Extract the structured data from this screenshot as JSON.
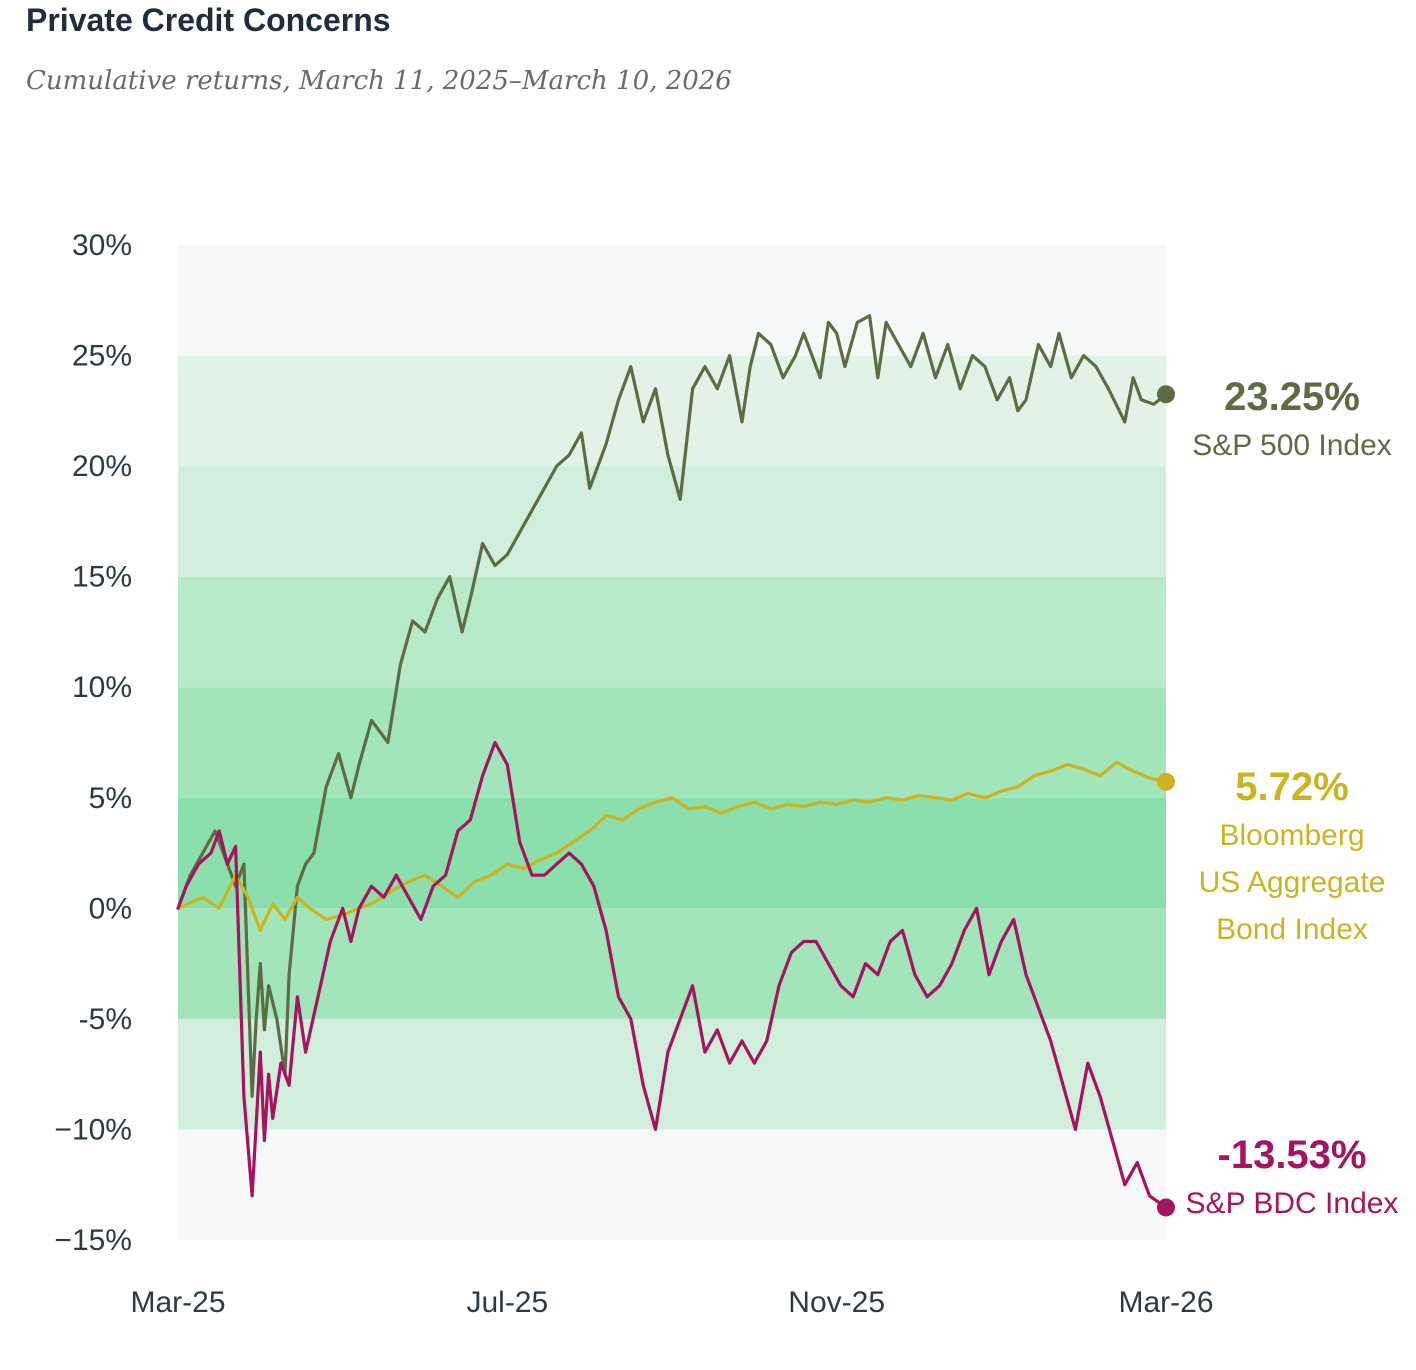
{
  "header": {
    "title": "Private Credit Concerns",
    "subtitle": "Cumulative returns, March 11, 2025–March 10, 2026"
  },
  "chart_data": {
    "type": "line",
    "title": "Private Credit Concerns",
    "subtitle": "Cumulative returns, March 11, 2025–March 10, 2026",
    "xlabel": "",
    "ylabel": "",
    "ylim": [
      -15,
      30
    ],
    "y_ticks": [
      {
        "value": 30,
        "label": "30%"
      },
      {
        "value": 25,
        "label": "25%"
      },
      {
        "value": 20,
        "label": "20%"
      },
      {
        "value": 15,
        "label": "15%"
      },
      {
        "value": 10,
        "label": "10%"
      },
      {
        "value": 5,
        "label": "5%"
      },
      {
        "value": 0,
        "label": "0%"
      },
      {
        "value": -5,
        "label": "-5%"
      },
      {
        "value": -10,
        "label": "−10%"
      },
      {
        "value": -15,
        "label": "−15%"
      }
    ],
    "x_ticks": [
      {
        "value": 0,
        "label": "Mar-25"
      },
      {
        "value": 4,
        "label": "Jul-25"
      },
      {
        "value": 8,
        "label": "Nov-25"
      },
      {
        "value": 12,
        "label": "Mar-26"
      }
    ],
    "x_unit": "months since March 11, 2025",
    "xlim": [
      0,
      12
    ],
    "series": [
      {
        "name": "S&P 500 Index",
        "color": "#5e6b43",
        "end_value_label": "23.25%",
        "end_label_lines": [
          "S&P 500 Index"
        ],
        "x": [
          0,
          0.15,
          0.3,
          0.45,
          0.6,
          0.7,
          0.8,
          0.9,
          0.95,
          1.0,
          1.05,
          1.1,
          1.2,
          1.3,
          1.35,
          1.45,
          1.55,
          1.65,
          1.8,
          1.95,
          2.1,
          2.2,
          2.35,
          2.45,
          2.55,
          2.7,
          2.85,
          3.0,
          3.15,
          3.3,
          3.45,
          3.55,
          3.7,
          3.85,
          4.0,
          4.15,
          4.3,
          4.45,
          4.6,
          4.75,
          4.9,
          5.0,
          5.1,
          5.2,
          5.35,
          5.5,
          5.65,
          5.8,
          5.95,
          6.1,
          6.25,
          6.4,
          6.55,
          6.7,
          6.85,
          6.95,
          7.05,
          7.2,
          7.35,
          7.5,
          7.6,
          7.7,
          7.8,
          7.9,
          8.0,
          8.1,
          8.25,
          8.4,
          8.5,
          8.6,
          8.75,
          8.9,
          9.05,
          9.2,
          9.35,
          9.5,
          9.65,
          9.8,
          9.95,
          10.1,
          10.2,
          10.3,
          10.45,
          10.6,
          10.7,
          10.85,
          11.0,
          11.15,
          11.3,
          11.5,
          11.6,
          11.7,
          11.85,
          12.0
        ],
        "y": [
          0,
          1.5,
          2.5,
          3.5,
          2.0,
          1.0,
          2.0,
          -8.5,
          -5.0,
          -2.5,
          -5.5,
          -3.5,
          -5.0,
          -7.5,
          -3.0,
          1.0,
          2.0,
          2.5,
          5.5,
          7.0,
          5.0,
          6.5,
          8.5,
          8.0,
          7.5,
          11.0,
          13.0,
          12.5,
          14.0,
          15.0,
          12.5,
          14.0,
          16.5,
          15.5,
          16.0,
          17.0,
          18.0,
          19.0,
          20.0,
          20.5,
          21.5,
          19.0,
          20.0,
          21.0,
          23.0,
          24.5,
          22.0,
          23.5,
          20.5,
          18.5,
          23.5,
          24.5,
          23.5,
          25.0,
          22.0,
          24.5,
          26.0,
          25.5,
          24.0,
          25.0,
          26.0,
          25.0,
          24.0,
          26.5,
          26.0,
          24.5,
          26.5,
          26.8,
          24.0,
          26.5,
          25.5,
          24.5,
          26.0,
          24.0,
          25.5,
          23.5,
          25.0,
          24.5,
          23.0,
          24.0,
          22.5,
          23.0,
          25.5,
          24.5,
          26.0,
          24.0,
          25.0,
          24.5,
          23.5,
          22.0,
          24.0,
          23.0,
          22.8,
          23.25
        ]
      },
      {
        "name": "Bloomberg US Aggregate Bond Index",
        "color": "#cbb321",
        "end_value_label": "5.72%",
        "end_label_lines": [
          "Bloomberg",
          "US Aggregate",
          "Bond Index"
        ],
        "x": [
          0,
          0.3,
          0.5,
          0.7,
          0.85,
          1.0,
          1.15,
          1.3,
          1.45,
          1.6,
          1.8,
          2.0,
          2.2,
          2.4,
          2.6,
          2.8,
          3.0,
          3.2,
          3.4,
          3.6,
          3.8,
          4.0,
          4.2,
          4.4,
          4.6,
          4.8,
          5.0,
          5.2,
          5.4,
          5.6,
          5.8,
          6.0,
          6.2,
          6.4,
          6.6,
          6.8,
          7.0,
          7.2,
          7.4,
          7.6,
          7.8,
          8.0,
          8.2,
          8.4,
          8.6,
          8.8,
          9.0,
          9.2,
          9.4,
          9.6,
          9.8,
          10.0,
          10.2,
          10.4,
          10.6,
          10.8,
          11.0,
          11.2,
          11.4,
          11.6,
          11.8,
          12.0
        ],
        "y": [
          0,
          0.5,
          0.0,
          1.5,
          0.5,
          -1.0,
          0.2,
          -0.5,
          0.5,
          0.0,
          -0.5,
          -0.3,
          0.0,
          0.3,
          0.8,
          1.2,
          1.5,
          1.0,
          0.5,
          1.2,
          1.5,
          2.0,
          1.8,
          2.2,
          2.5,
          3.0,
          3.5,
          4.2,
          4.0,
          4.5,
          4.8,
          5.0,
          4.5,
          4.6,
          4.3,
          4.6,
          4.8,
          4.5,
          4.7,
          4.6,
          4.8,
          4.7,
          4.9,
          4.8,
          5.0,
          4.9,
          5.1,
          5.0,
          4.9,
          5.2,
          5.0,
          5.3,
          5.5,
          6.0,
          6.2,
          6.5,
          6.3,
          6.0,
          6.6,
          6.2,
          5.9,
          5.72
        ]
      },
      {
        "name": "S&P BDC Index",
        "color": "#a5155f",
        "end_value_label": "-13.53%",
        "end_label_lines": [
          "S&P BDC Index"
        ],
        "x": [
          0,
          0.1,
          0.25,
          0.4,
          0.5,
          0.6,
          0.7,
          0.8,
          0.9,
          1.0,
          1.05,
          1.1,
          1.15,
          1.25,
          1.35,
          1.45,
          1.55,
          1.7,
          1.85,
          2.0,
          2.1,
          2.2,
          2.35,
          2.5,
          2.65,
          2.8,
          2.95,
          3.1,
          3.25,
          3.4,
          3.55,
          3.7,
          3.85,
          4.0,
          4.15,
          4.3,
          4.45,
          4.6,
          4.75,
          4.9,
          5.05,
          5.2,
          5.35,
          5.5,
          5.65,
          5.8,
          5.95,
          6.1,
          6.25,
          6.4,
          6.55,
          6.7,
          6.85,
          7.0,
          7.15,
          7.3,
          7.45,
          7.6,
          7.75,
          7.9,
          8.05,
          8.2,
          8.35,
          8.5,
          8.65,
          8.8,
          8.95,
          9.1,
          9.25,
          9.4,
          9.55,
          9.7,
          9.85,
          10.0,
          10.15,
          10.3,
          10.45,
          10.6,
          10.75,
          10.9,
          11.05,
          11.2,
          11.35,
          11.5,
          11.65,
          11.8,
          12.0
        ],
        "y": [
          0,
          1.0,
          2.0,
          2.5,
          3.5,
          2.0,
          2.8,
          -8.5,
          -13.0,
          -6.5,
          -10.5,
          -7.5,
          -9.5,
          -7.0,
          -8.0,
          -4.0,
          -6.5,
          -4.0,
          -1.5,
          0.0,
          -1.5,
          0.0,
          1.0,
          0.5,
          1.5,
          0.5,
          -0.5,
          1.0,
          1.5,
          3.5,
          4.0,
          6.0,
          7.5,
          6.5,
          3.0,
          1.5,
          1.5,
          2.0,
          2.5,
          2.0,
          1.0,
          -1.0,
          -4.0,
          -5.0,
          -8.0,
          -10.0,
          -6.5,
          -5.0,
          -3.5,
          -6.5,
          -5.5,
          -7.0,
          -6.0,
          -7.0,
          -6.0,
          -3.5,
          -2.0,
          -1.5,
          -1.5,
          -2.5,
          -3.5,
          -4.0,
          -2.5,
          -3.0,
          -1.5,
          -1.0,
          -3.0,
          -4.0,
          -3.5,
          -2.5,
          -1.0,
          0.0,
          -3.0,
          -1.5,
          -0.5,
          -3.0,
          -4.5,
          -6.0,
          -8.0,
          -10.0,
          -7.0,
          -8.5,
          -10.5,
          -12.5,
          -11.5,
          -13.0,
          -13.53
        ]
      }
    ]
  }
}
